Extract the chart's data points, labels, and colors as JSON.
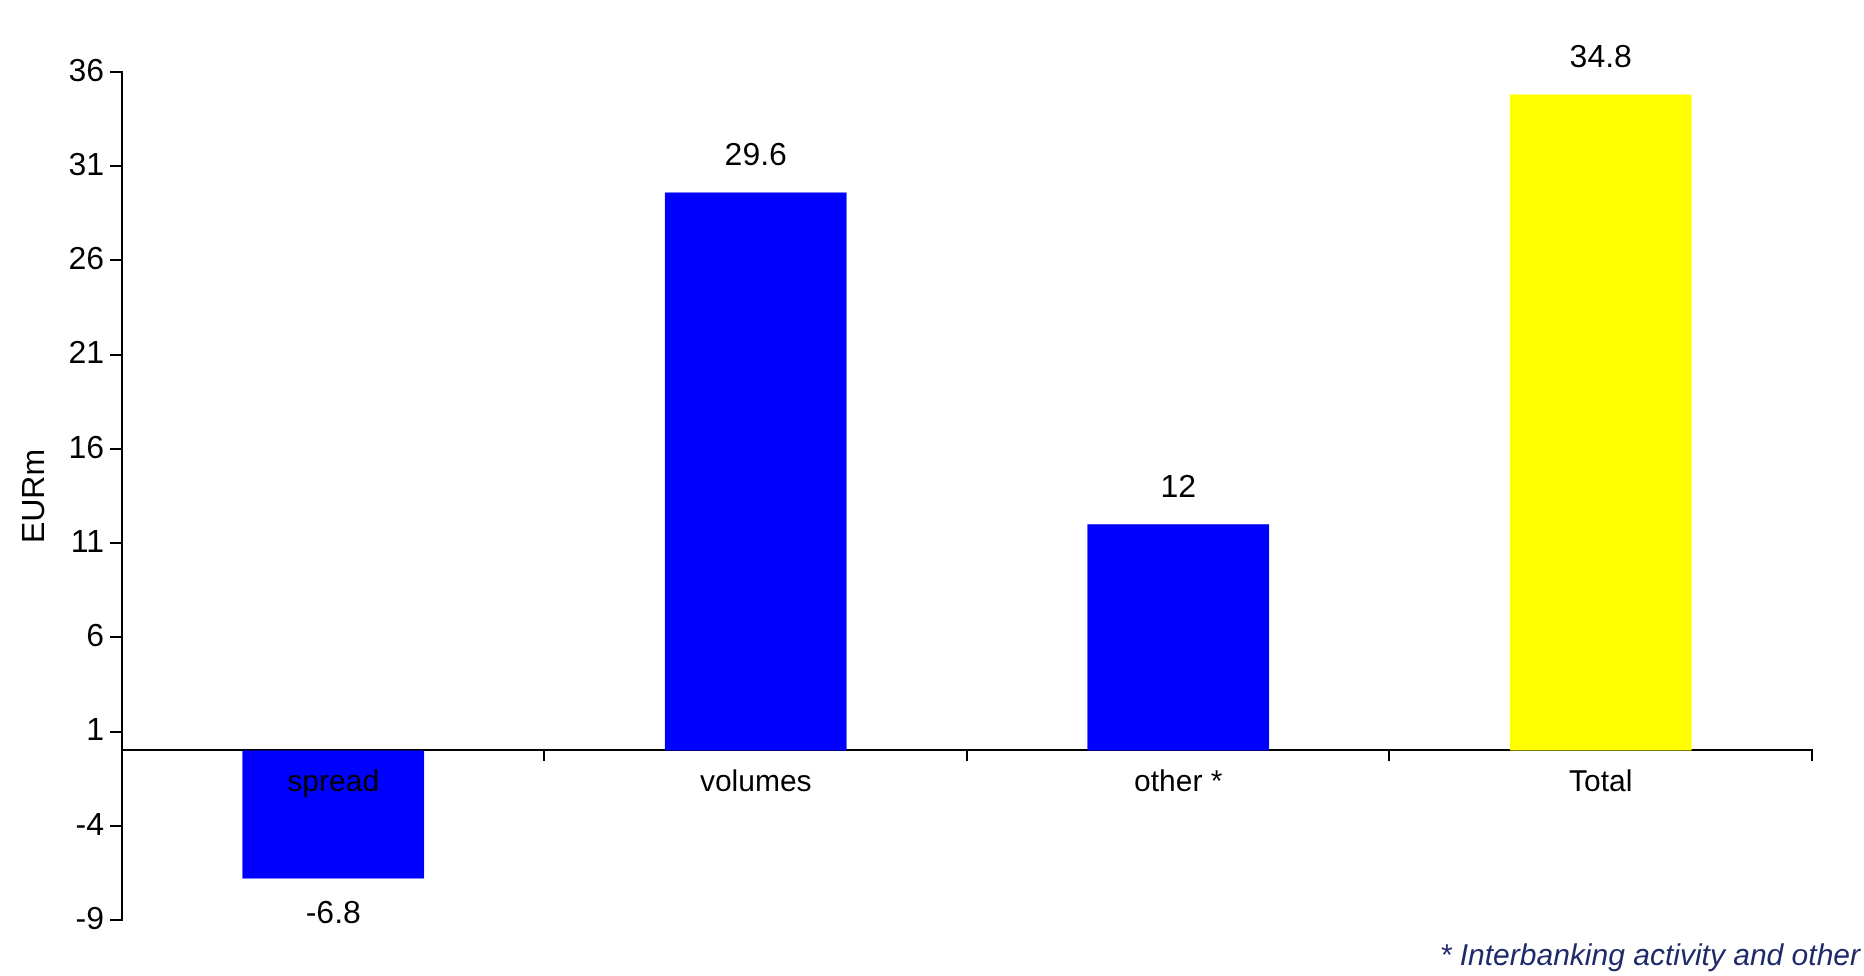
{
  "chart_data": {
    "type": "bar",
    "ylabel": "EURm",
    "categories": [
      "spread",
      "volumes",
      "other *",
      "Total"
    ],
    "values": [
      -6.8,
      29.6,
      12,
      34.8
    ],
    "colors": [
      "#0000ff",
      "#0000ff",
      "#0000ff",
      "#ffff00"
    ],
    "ylim": [
      -9,
      36
    ],
    "yticks": [
      -9,
      -4,
      1,
      6,
      11,
      16,
      21,
      26,
      31,
      36
    ],
    "grid": false,
    "legend": false,
    "data_labels": true,
    "annotations": [
      "* Interbanking activity and other"
    ]
  }
}
